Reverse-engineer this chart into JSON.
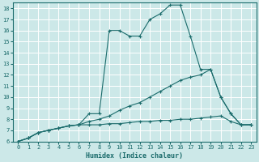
{
  "xlabel": "Humidex (Indice chaleur)",
  "bg_color": "#cce8e8",
  "line_color": "#1a6b6b",
  "grid_color": "#ffffff",
  "xlim": [
    -0.5,
    23.5
  ],
  "ylim": [
    6,
    18.5
  ],
  "yticks": [
    6,
    7,
    8,
    9,
    10,
    11,
    12,
    13,
    14,
    15,
    16,
    17,
    18
  ],
  "xticks": [
    0,
    1,
    2,
    3,
    4,
    5,
    6,
    7,
    8,
    9,
    10,
    11,
    12,
    13,
    14,
    15,
    16,
    17,
    18,
    19,
    20,
    21,
    22,
    23
  ],
  "series1": [
    [
      0,
      6.0
    ],
    [
      1,
      6.3
    ],
    [
      2,
      6.8
    ],
    [
      3,
      7.0
    ],
    [
      4,
      7.2
    ],
    [
      5,
      7.4
    ],
    [
      6,
      7.5
    ],
    [
      7,
      8.5
    ],
    [
      8,
      8.5
    ],
    [
      9,
      16.0
    ],
    [
      10,
      16.0
    ],
    [
      11,
      15.5
    ],
    [
      12,
      15.5
    ],
    [
      13,
      17.0
    ],
    [
      14,
      17.5
    ],
    [
      15,
      18.3
    ],
    [
      16,
      18.3
    ],
    [
      17,
      15.5
    ],
    [
      18,
      12.5
    ],
    [
      19,
      12.5
    ],
    [
      20,
      10.0
    ],
    [
      21,
      8.5
    ],
    [
      22,
      7.5
    ],
    [
      23,
      7.5
    ]
  ],
  "series2": [
    [
      0,
      6.0
    ],
    [
      1,
      6.3
    ],
    [
      2,
      6.8
    ],
    [
      3,
      7.0
    ],
    [
      4,
      7.2
    ],
    [
      5,
      7.4
    ],
    [
      6,
      7.5
    ],
    [
      7,
      7.8
    ],
    [
      8,
      8.0
    ],
    [
      9,
      8.3
    ],
    [
      10,
      8.8
    ],
    [
      11,
      9.2
    ],
    [
      12,
      9.5
    ],
    [
      13,
      10.0
    ],
    [
      14,
      10.5
    ],
    [
      15,
      11.0
    ],
    [
      16,
      11.5
    ],
    [
      17,
      11.8
    ],
    [
      18,
      12.0
    ],
    [
      19,
      12.5
    ],
    [
      20,
      10.0
    ],
    [
      21,
      8.5
    ],
    [
      22,
      7.5
    ],
    [
      23,
      7.5
    ]
  ],
  "series3": [
    [
      0,
      6.0
    ],
    [
      1,
      6.3
    ],
    [
      2,
      6.8
    ],
    [
      3,
      7.0
    ],
    [
      4,
      7.2
    ],
    [
      5,
      7.4
    ],
    [
      6,
      7.5
    ],
    [
      7,
      7.5
    ],
    [
      8,
      7.5
    ],
    [
      9,
      7.6
    ],
    [
      10,
      7.6
    ],
    [
      11,
      7.7
    ],
    [
      12,
      7.8
    ],
    [
      13,
      7.8
    ],
    [
      14,
      7.9
    ],
    [
      15,
      7.9
    ],
    [
      16,
      8.0
    ],
    [
      17,
      8.0
    ],
    [
      18,
      8.1
    ],
    [
      19,
      8.2
    ],
    [
      20,
      8.3
    ],
    [
      21,
      7.8
    ],
    [
      22,
      7.5
    ],
    [
      23,
      7.5
    ]
  ],
  "xlabel_fontsize": 6,
  "tick_fontsize": 5
}
